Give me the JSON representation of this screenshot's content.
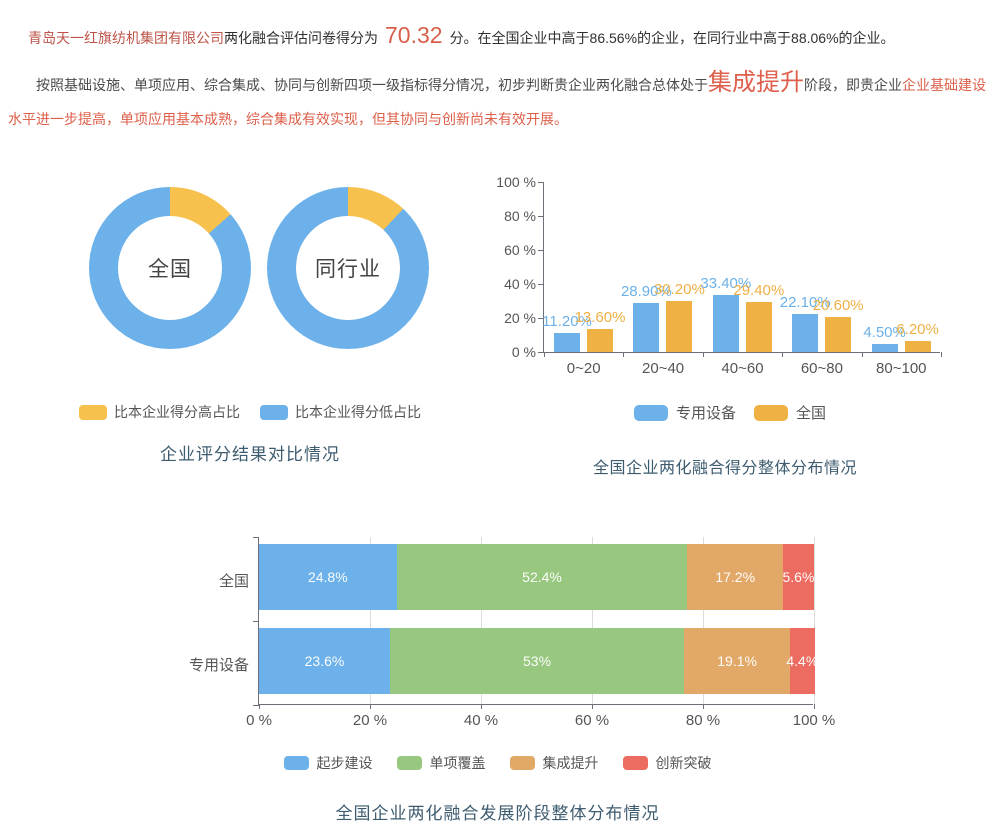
{
  "intro": {
    "company": "青岛天一红旗纺机集团有限公司",
    "before_score": "两化融合评估问卷得分为",
    "score": "70.32",
    "after_score": "分。在全国企业中高于86.56%的企业，在同行业中高于88.06%的企业。"
  },
  "assessment": {
    "lead": "按照基础设施、单项应用、综合集成、协同与创新四项一级指标得分情况，初步判断贵企业两化融合总体处于",
    "stage": "集成提升",
    "mid": "阶段，即贵企业",
    "detail": "企业基础建设水平进一步提高，单项应用基本成熟，综合集成有效实现，但其协同与创新尚未有效开展。"
  },
  "chart_data": [
    {
      "type": "pie",
      "variant": "donut-pair",
      "title": "企业评分结果对比情况",
      "legend": [
        "比本企业得分高占比",
        "比本企业得分低占比"
      ],
      "colors": {
        "high": "#f7c14e",
        "low": "#6cb1e9"
      },
      "donuts": [
        {
          "label": "全国",
          "slices": [
            {
              "name": "比本企业得分高占比",
              "value": 13.44
            },
            {
              "name": "比本企业得分低占比",
              "value": 86.56
            }
          ]
        },
        {
          "label": "同行业",
          "slices": [
            {
              "name": "比本企业得分高占比",
              "value": 11.94
            },
            {
              "name": "比本企业得分低占比",
              "value": 88.06
            }
          ]
        }
      ]
    },
    {
      "type": "bar",
      "orientation": "vertical",
      "title": "全国企业两化融合得分整体分布情况",
      "categories": [
        "0~20",
        "20~40",
        "40~60",
        "60~80",
        "80~100"
      ],
      "series": [
        {
          "name": "专用设备",
          "color": "#6cb1e9",
          "values": [
            11.2,
            28.9,
            33.4,
            22.1,
            4.5
          ],
          "labels": [
            "11.20%",
            "28.90%",
            "33.40%",
            "22.10%",
            "4.50%"
          ]
        },
        {
          "name": "全国",
          "color": "#efb044",
          "values": [
            13.6,
            30.2,
            29.4,
            20.6,
            6.2
          ],
          "labels": [
            "13.60%",
            "30.20%",
            "29.40%",
            "20.60%",
            "6.20%"
          ]
        }
      ],
      "ylabels": [
        "0 %",
        "20 %",
        "40 %",
        "60 %",
        "80 %",
        "100 %"
      ],
      "ylim": [
        0,
        100
      ],
      "grid": false,
      "legend_position": "bottom"
    },
    {
      "type": "bar",
      "orientation": "horizontal",
      "stacked": true,
      "title": "全国企业两化融合发展阶段整体分布情况",
      "categories": [
        "全国",
        "专用设备"
      ],
      "series": [
        {
          "name": "起步建设",
          "color": "#6cb1e9",
          "values": [
            24.8,
            23.6
          ],
          "labels": [
            "24.8%",
            "23.6%"
          ]
        },
        {
          "name": "单项覆盖",
          "color": "#98c77f",
          "values": [
            52.4,
            53.0
          ],
          "labels": [
            "52.4%",
            "53%"
          ]
        },
        {
          "name": "集成提升",
          "color": "#e2a867",
          "values": [
            17.2,
            19.1
          ],
          "labels": [
            "17.2%",
            "19.1%"
          ]
        },
        {
          "name": "创新突破",
          "color": "#ed6c61",
          "values": [
            5.6,
            4.4
          ],
          "labels": [
            "5.6%",
            "4.4%"
          ]
        }
      ],
      "xlabels": [
        "0 %",
        "20 %",
        "40 %",
        "60 %",
        "80 %",
        "100 %"
      ],
      "xlim": [
        0,
        100
      ],
      "grid": true,
      "legend_position": "bottom"
    }
  ]
}
